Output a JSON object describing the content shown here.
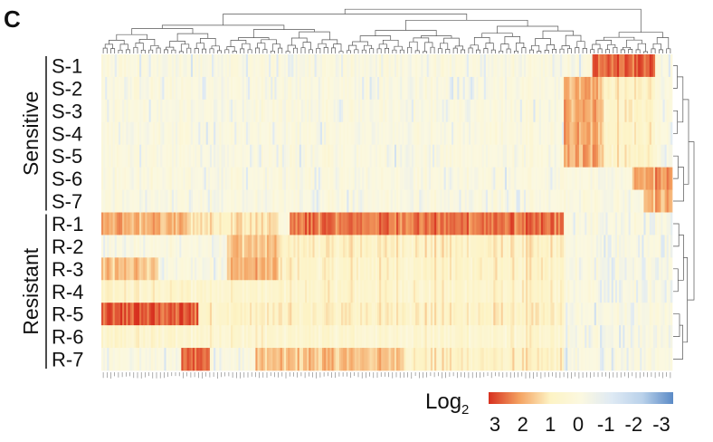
{
  "panel_label": "C",
  "chart_data": {
    "type": "heatmap",
    "groups": [
      {
        "name": "Sensitive",
        "rows": [
          "S-1",
          "S-2",
          "S-3",
          "S-4",
          "S-5",
          "S-6",
          "S-7"
        ]
      },
      {
        "name": "Resistant",
        "rows": [
          "R-1",
          "R-2",
          "R-3",
          "R-4",
          "R-5",
          "R-6",
          "R-7"
        ]
      }
    ],
    "column_count": 300,
    "colorbar": {
      "label": "Log",
      "label_subscript": "2",
      "ticks": [
        "3",
        "2",
        "1",
        "0",
        "-1",
        "-2",
        "-3"
      ],
      "range": [
        3,
        -3
      ],
      "colors": [
        "#d7301f",
        "#f4a261",
        "#fdf3c4",
        "#fbf8e0",
        "#dfeaf4",
        "#b9d1ea",
        "#5b8ac6"
      ]
    },
    "blocks": [
      {
        "rows": [
          "S-1"
        ],
        "x_range": [
          0.86,
          0.97
        ],
        "value": 2.6
      },
      {
        "rows": [
          "S-2",
          "S-3",
          "S-4",
          "S-5"
        ],
        "x_range": [
          0.81,
          0.88
        ],
        "value": 1.8
      },
      {
        "rows": [
          "S-2",
          "S-3",
          "S-4",
          "S-5"
        ],
        "x_range": [
          0.88,
          0.97
        ],
        "value": 0.9
      },
      {
        "rows": [
          "S-6"
        ],
        "x_range": [
          0.93,
          1.0
        ],
        "value": 2.0
      },
      {
        "rows": [
          "S-7"
        ],
        "x_range": [
          0.95,
          1.0
        ],
        "value": 1.8
      },
      {
        "rows": [
          "R-1"
        ],
        "x_range": [
          0.0,
          0.15
        ],
        "value": 1.8
      },
      {
        "rows": [
          "R-1"
        ],
        "x_range": [
          0.15,
          0.31
        ],
        "value": 1.2
      },
      {
        "rows": [
          "R-1"
        ],
        "x_range": [
          0.33,
          0.81
        ],
        "value": 2.4
      },
      {
        "rows": [
          "R-2"
        ],
        "x_range": [
          0.22,
          0.31
        ],
        "value": 1.6
      },
      {
        "rows": [
          "R-2"
        ],
        "x_range": [
          0.31,
          0.81
        ],
        "value": 0.9
      },
      {
        "rows": [
          "R-3"
        ],
        "x_range": [
          0.0,
          0.1
        ],
        "value": 1.5
      },
      {
        "rows": [
          "R-3"
        ],
        "x_range": [
          0.22,
          0.31
        ],
        "value": 1.7
      },
      {
        "rows": [
          "R-3"
        ],
        "x_range": [
          0.31,
          0.81
        ],
        "value": 0.8
      },
      {
        "rows": [
          "R-4"
        ],
        "x_range": [
          0.0,
          0.81
        ],
        "value": 0.7
      },
      {
        "rows": [
          "R-5"
        ],
        "x_range": [
          0.0,
          0.17
        ],
        "value": 2.6
      },
      {
        "rows": [
          "R-5"
        ],
        "x_range": [
          0.17,
          0.81
        ],
        "value": 0.9
      },
      {
        "rows": [
          "R-6"
        ],
        "x_range": [
          0.0,
          0.81
        ],
        "value": 0.6
      },
      {
        "rows": [
          "R-7"
        ],
        "x_range": [
          0.14,
          0.19
        ],
        "value": 2.5
      },
      {
        "rows": [
          "R-7"
        ],
        "x_range": [
          0.27,
          0.53
        ],
        "value": 1.6
      },
      {
        "rows": [
          "R-7"
        ],
        "x_range": [
          0.53,
          0.81
        ],
        "value": 0.9
      }
    ],
    "background_value": 0.0,
    "row_dendrogram": true,
    "column_dendrogram": true
  }
}
